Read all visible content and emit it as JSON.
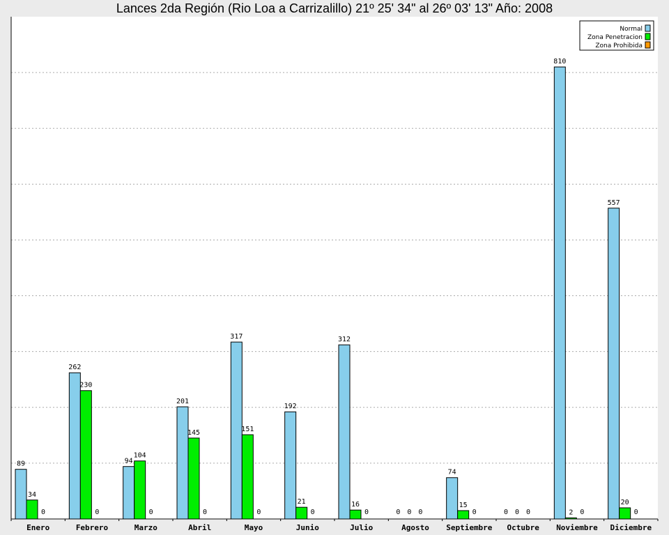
{
  "chart_data": {
    "type": "bar",
    "title": "Lances 2da Región (Rio Loa a Carrizalillo) 21º 25' 34\" al 26º 03' 13\" Año: 2008",
    "xlabel": "",
    "ylabel": "",
    "ylim": [
      0,
      900
    ],
    "grid": true,
    "legend_position": "top-right",
    "categories": [
      "Enero",
      "Febrero",
      "Marzo",
      "Abril",
      "Mayo",
      "Junio",
      "Julio",
      "Agosto",
      "Septiembre",
      "Octubre",
      "Noviembre",
      "Diciembre"
    ],
    "series": [
      {
        "name": "Normal",
        "color": "#87ceeb",
        "values": [
          89,
          262,
          94,
          201,
          317,
          192,
          312,
          0,
          74,
          0,
          810,
          557
        ]
      },
      {
        "name": "Zona Penetracion",
        "color": "#00ee00",
        "values": [
          34,
          230,
          104,
          145,
          151,
          21,
          16,
          0,
          15,
          0,
          2,
          20
        ]
      },
      {
        "name": "Zona Prohibida",
        "color": "#ff9900",
        "values": [
          0,
          0,
          0,
          0,
          0,
          0,
          0,
          0,
          0,
          0,
          0,
          0
        ]
      }
    ]
  }
}
